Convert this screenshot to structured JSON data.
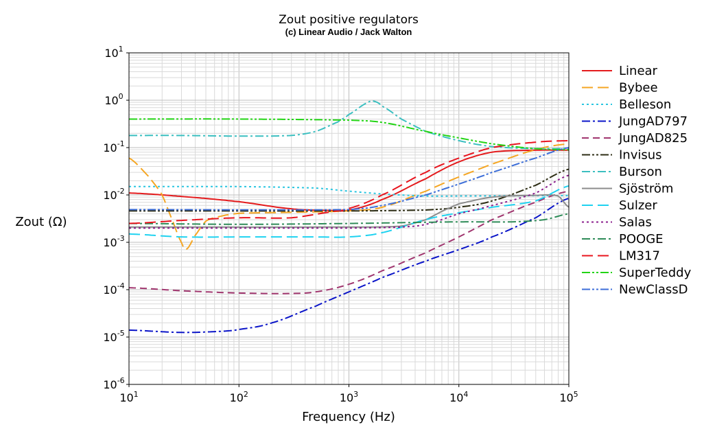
{
  "chart_data": {
    "type": "line",
    "title": "Zout positive regulators",
    "subtitle": "(c) Linear Audio / Jack Walton",
    "xlabel": "Frequency (Hz)",
    "ylabel": "Zout (Ω)",
    "xscale": "log",
    "yscale": "log",
    "xlim": [
      10,
      100000
    ],
    "ylim": [
      1e-06,
      10
    ],
    "grid": true,
    "legend_position": "right",
    "x_ticks": [
      {
        "base": "10",
        "exp": "1"
      },
      {
        "base": "10",
        "exp": "2"
      },
      {
        "base": "10",
        "exp": "3"
      },
      {
        "base": "10",
        "exp": "4"
      },
      {
        "base": "10",
        "exp": "5"
      }
    ],
    "y_ticks": [
      {
        "base": "10",
        "exp": "1"
      },
      {
        "base": "10",
        "exp": "0"
      },
      {
        "base": "10",
        "exp": "-1"
      },
      {
        "base": "10",
        "exp": "-2"
      },
      {
        "base": "10",
        "exp": "-3"
      },
      {
        "base": "10",
        "exp": "-4"
      },
      {
        "base": "10",
        "exp": "-5"
      },
      {
        "base": "10",
        "exp": "-6"
      }
    ],
    "series": [
      {
        "name": "Linear",
        "color": "#e41a1c",
        "dash": "solid",
        "points": [
          [
            10,
            0.011
          ],
          [
            30,
            0.0093
          ],
          [
            100,
            0.0072
          ],
          [
            300,
            0.0051
          ],
          [
            700,
            0.0047
          ],
          [
            1000,
            0.0048
          ],
          [
            2000,
            0.008
          ],
          [
            5000,
            0.022
          ],
          [
            10000,
            0.05
          ],
          [
            20000,
            0.08
          ],
          [
            50000,
            0.088
          ],
          [
            100000,
            0.088
          ]
        ]
      },
      {
        "name": "Bybee",
        "color": "#f5a623",
        "dash": "longdash",
        "points": [
          [
            10,
            0.06
          ],
          [
            15,
            0.025
          ],
          [
            20,
            0.01
          ],
          [
            25,
            0.0028
          ],
          [
            30,
            0.001
          ],
          [
            33,
            0.0007
          ],
          [
            40,
            0.0014
          ],
          [
            50,
            0.0028
          ],
          [
            70,
            0.0036
          ],
          [
            100,
            0.0041
          ],
          [
            300,
            0.0043
          ],
          [
            1000,
            0.0046
          ],
          [
            2000,
            0.0055
          ],
          [
            5000,
            0.012
          ],
          [
            10000,
            0.024
          ],
          [
            20000,
            0.045
          ],
          [
            50000,
            0.09
          ],
          [
            100000,
            0.12
          ]
        ]
      },
      {
        "name": "Belleson",
        "color": "#29c5e0",
        "dash": "dot",
        "points": [
          [
            10,
            0.015
          ],
          [
            100,
            0.015
          ],
          [
            500,
            0.014
          ],
          [
            1000,
            0.012
          ],
          [
            2000,
            0.0105
          ],
          [
            5000,
            0.0095
          ],
          [
            10000,
            0.0095
          ],
          [
            30000,
            0.0096
          ],
          [
            100000,
            0.0097
          ]
        ]
      },
      {
        "name": "JungAD797",
        "color": "#0a14c8",
        "dash": "dashdot",
        "points": [
          [
            10,
            1.4e-05
          ],
          [
            30,
            1.25e-05
          ],
          [
            70,
            1.32e-05
          ],
          [
            100,
            1.45e-05
          ],
          [
            200,
            2e-05
          ],
          [
            500,
            4.5e-05
          ],
          [
            1000,
            9e-05
          ],
          [
            2000,
            0.00018
          ],
          [
            5000,
            0.0004
          ],
          [
            10000,
            0.0007
          ],
          [
            20000,
            0.0013
          ],
          [
            50000,
            0.0033
          ],
          [
            100000,
            0.0085
          ]
        ]
      },
      {
        "name": "JungAD825",
        "color": "#a0356e",
        "dash": "dash",
        "points": [
          [
            10,
            0.00011
          ],
          [
            30,
            9.5e-05
          ],
          [
            100,
            8.5e-05
          ],
          [
            300,
            8.3e-05
          ],
          [
            500,
            9e-05
          ],
          [
            1000,
            0.00013
          ],
          [
            2000,
            0.00025
          ],
          [
            5000,
            0.0006
          ],
          [
            10000,
            0.0013
          ],
          [
            20000,
            0.003
          ],
          [
            50000,
            0.007
          ],
          [
            100000,
            0.012
          ]
        ]
      },
      {
        "name": "Invisus",
        "color": "#2d2d14",
        "dash": "dashdotdot",
        "points": [
          [
            10,
            0.0046
          ],
          [
            1000,
            0.0046
          ],
          [
            5000,
            0.0048
          ],
          [
            10000,
            0.0055
          ],
          [
            20000,
            0.0075
          ],
          [
            50000,
            0.016
          ],
          [
            100000,
            0.035
          ]
        ]
      },
      {
        "name": "Burson",
        "color": "#3bbfc0",
        "dash": "dashdot",
        "points": [
          [
            10,
            0.18
          ],
          [
            30,
            0.18
          ],
          [
            100,
            0.175
          ],
          [
            300,
            0.18
          ],
          [
            500,
            0.22
          ],
          [
            800,
            0.35
          ],
          [
            1000,
            0.5
          ],
          [
            1500,
            0.9
          ],
          [
            1700,
            0.95
          ],
          [
            2000,
            0.75
          ],
          [
            3000,
            0.4
          ],
          [
            5000,
            0.22
          ],
          [
            10000,
            0.14
          ],
          [
            20000,
            0.105
          ],
          [
            50000,
            0.095
          ],
          [
            100000,
            0.095
          ]
        ]
      },
      {
        "name": "Sjöström",
        "color": "#8c8c8c",
        "dash": "solid",
        "points": [
          [
            10,
            0.0021
          ],
          [
            1000,
            0.0021
          ],
          [
            3000,
            0.0022
          ],
          [
            5000,
            0.003
          ],
          [
            7000,
            0.0045
          ],
          [
            10000,
            0.0065
          ],
          [
            20000,
            0.009
          ],
          [
            50000,
            0.0098
          ],
          [
            80000,
            0.0095
          ],
          [
            100000,
            0.0055
          ]
        ]
      },
      {
        "name": "Sulzer",
        "color": "#1ed2f0",
        "dash": "longdash",
        "points": [
          [
            10,
            0.0015
          ],
          [
            30,
            0.0013
          ],
          [
            100,
            0.0013
          ],
          [
            500,
            0.0013
          ],
          [
            1000,
            0.0013
          ],
          [
            2000,
            0.0016
          ],
          [
            5000,
            0.003
          ],
          [
            10000,
            0.0042
          ],
          [
            20000,
            0.0055
          ],
          [
            50000,
            0.0075
          ],
          [
            100000,
            0.0155
          ]
        ]
      },
      {
        "name": "Salas",
        "color": "#8a1e8c",
        "dash": "dot",
        "points": [
          [
            10,
            0.002
          ],
          [
            1000,
            0.002
          ],
          [
            3000,
            0.0021
          ],
          [
            5000,
            0.0024
          ],
          [
            10000,
            0.004
          ],
          [
            20000,
            0.006
          ],
          [
            50000,
            0.011
          ],
          [
            100000,
            0.026
          ]
        ]
      },
      {
        "name": "POOGE",
        "color": "#2e8b57",
        "dash": "dashdot",
        "points": [
          [
            10,
            0.0025
          ],
          [
            100,
            0.0024
          ],
          [
            1000,
            0.0025
          ],
          [
            10000,
            0.0027
          ],
          [
            30000,
            0.0027
          ],
          [
            60000,
            0.003
          ],
          [
            100000,
            0.004
          ]
        ]
      },
      {
        "name": "LM317",
        "color": "#e8141e",
        "dash": "longdash",
        "points": [
          [
            10,
            0.0025
          ],
          [
            30,
            0.0029
          ],
          [
            100,
            0.0033
          ],
          [
            300,
            0.0033
          ],
          [
            700,
            0.0044
          ],
          [
            1000,
            0.0052
          ],
          [
            2000,
            0.01
          ],
          [
            5000,
            0.03
          ],
          [
            10000,
            0.06
          ],
          [
            20000,
            0.1
          ],
          [
            50000,
            0.13
          ],
          [
            100000,
            0.14
          ]
        ]
      },
      {
        "name": "SuperTeddy",
        "color": "#22d414",
        "dash": "dashdotdot",
        "points": [
          [
            10,
            0.4
          ],
          [
            100,
            0.4
          ],
          [
            1000,
            0.38
          ],
          [
            2000,
            0.34
          ],
          [
            5000,
            0.22
          ],
          [
            10000,
            0.16
          ],
          [
            20000,
            0.12
          ],
          [
            50000,
            0.095
          ],
          [
            100000,
            0.09
          ]
        ]
      },
      {
        "name": "NewClassD",
        "color": "#3c6ed8",
        "dash": "dashdotdot",
        "points": [
          [
            10,
            0.0049
          ],
          [
            1000,
            0.0049
          ],
          [
            2000,
            0.006
          ],
          [
            5000,
            0.01
          ],
          [
            10000,
            0.017
          ],
          [
            20000,
            0.03
          ],
          [
            50000,
            0.06
          ],
          [
            100000,
            0.1
          ]
        ]
      }
    ]
  }
}
